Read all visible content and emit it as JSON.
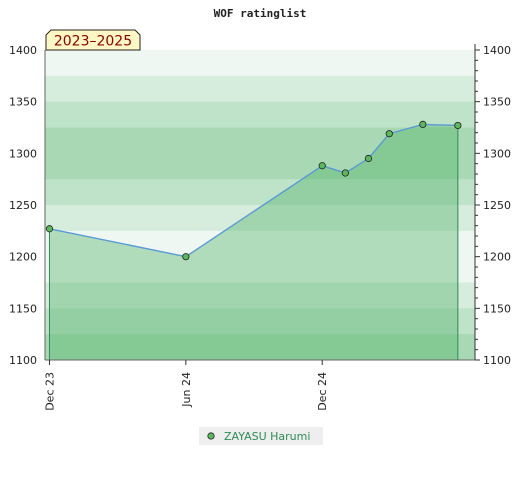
{
  "chart_data": {
    "type": "area",
    "title": "WOF ratinglist",
    "badge": "2023–2025",
    "xlabel": "",
    "ylabel": "",
    "ylim": [
      1100,
      1400
    ],
    "y_ticks": [
      1100,
      1150,
      1200,
      1250,
      1300,
      1350,
      1400
    ],
    "x_range": [
      "2023-11-25",
      "2025-06-24"
    ],
    "x_ticks": [
      {
        "date": "2023-12-01",
        "label": "Dec 23"
      },
      {
        "date": "2024-06-01",
        "label": "Jun 24"
      },
      {
        "date": "2024-12-01",
        "label": "Dec 24"
      }
    ],
    "grid": true,
    "legend_position": "bottom-center",
    "series": [
      {
        "name": "ZAYASU Harumi",
        "color": "#5b9bd5",
        "marker_color": "#5cb85c",
        "points": [
          {
            "x": "2023-12-01",
            "y": 1227
          },
          {
            "x": "2024-06-01",
            "y": 1200
          },
          {
            "x": "2024-12-01",
            "y": 1288
          },
          {
            "x": "2025-01-01",
            "y": 1281
          },
          {
            "x": "2025-02-01",
            "y": 1295
          },
          {
            "x": "2025-03-01",
            "y": 1319
          },
          {
            "x": "2025-04-15",
            "y": 1328
          },
          {
            "x": "2025-06-01",
            "y": 1327
          }
        ]
      }
    ]
  }
}
